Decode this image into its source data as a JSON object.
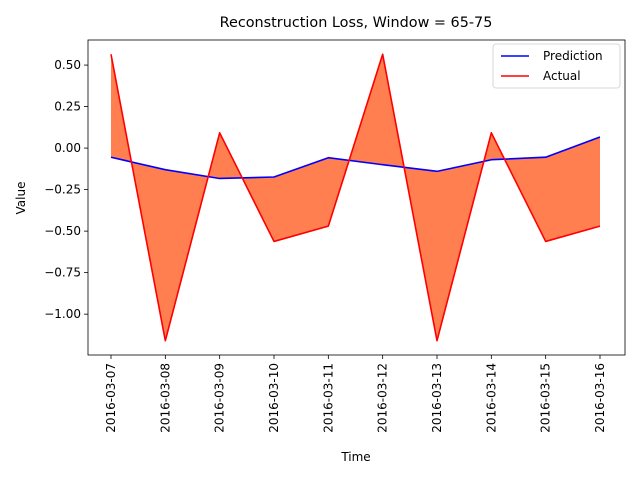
{
  "chart_data": {
    "type": "line",
    "title": "Reconstruction Loss, Window = 65-75",
    "xlabel": "Time",
    "ylabel": "Value",
    "x": [
      "2016-03-07",
      "2016-03-08",
      "2016-03-09",
      "2016-03-10",
      "2016-03-11",
      "2016-03-12",
      "2016-03-13",
      "2016-03-14",
      "2016-03-15",
      "2016-03-16"
    ],
    "series": [
      {
        "name": "Prediction",
        "color": "#0000ff",
        "values": [
          -0.055,
          -0.13,
          -0.183,
          -0.174,
          -0.058,
          -0.1,
          -0.14,
          -0.07,
          -0.055,
          0.067
        ]
      },
      {
        "name": "Actual",
        "color": "#ff0000",
        "values": [
          0.565,
          -1.16,
          0.092,
          -0.562,
          -0.47,
          0.565,
          -1.16,
          0.092,
          -0.562,
          -0.47
        ]
      }
    ],
    "fill_between": {
      "series": [
        "Prediction",
        "Actual"
      ],
      "color": "#ff7f50"
    },
    "yticks": [
      0.5,
      0.25,
      0.0,
      -0.25,
      -0.5,
      -0.75,
      -1.0
    ],
    "ytick_labels": [
      "0.50",
      "0.25",
      "0.00",
      "−0.25",
      "−0.50",
      "−0.75",
      "−1.00"
    ],
    "ylim": [
      -1.246,
      0.651
    ],
    "grid": false,
    "legend_position": "upper-right"
  }
}
